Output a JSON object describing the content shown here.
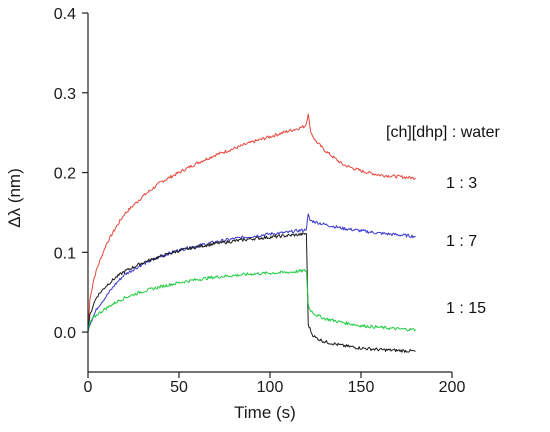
{
  "chart_data": {
    "type": "line",
    "xlabel": "Time (s)",
    "ylabel": "Δλ (nm)",
    "xlim": [
      0,
      200
    ],
    "ylim": [
      -0.05,
      0.4
    ],
    "x_ticks": [
      0,
      50,
      100,
      150,
      200
    ],
    "y_ticks": [
      0.0,
      0.1,
      0.2,
      0.3,
      0.4
    ],
    "x_tick_labels": [
      "0",
      "50",
      "100",
      "150",
      "200"
    ],
    "y_tick_labels": [
      "0.0",
      "0.1",
      "0.2",
      "0.3",
      "0.4"
    ],
    "grid": false,
    "legend_title": "[ch][dhp] : water",
    "series": [
      {
        "name": "1 : 3",
        "color": "#e8463c",
        "x": [
          0,
          1,
          3,
          5,
          10,
          15,
          20,
          30,
          40,
          50,
          60,
          70,
          80,
          90,
          100,
          110,
          115,
          119,
          120,
          121,
          122,
          123,
          125,
          130,
          140,
          150,
          160,
          170,
          180
        ],
        "y": [
          0.0,
          0.04,
          0.065,
          0.08,
          0.11,
          0.13,
          0.148,
          0.17,
          0.188,
          0.2,
          0.212,
          0.222,
          0.23,
          0.238,
          0.245,
          0.252,
          0.255,
          0.258,
          0.262,
          0.275,
          0.255,
          0.248,
          0.24,
          0.228,
          0.21,
          0.202,
          0.197,
          0.195,
          0.193
        ]
      },
      {
        "name": "1 : 7",
        "color": "#3a3ad0",
        "x": [
          0,
          1,
          3,
          5,
          10,
          15,
          20,
          30,
          40,
          50,
          60,
          70,
          80,
          90,
          100,
          110,
          115,
          119,
          120,
          121,
          122,
          125,
          130,
          140,
          150,
          160,
          170,
          180
        ],
        "y": [
          0.0,
          0.01,
          0.02,
          0.03,
          0.045,
          0.06,
          0.072,
          0.085,
          0.095,
          0.103,
          0.108,
          0.113,
          0.117,
          0.12,
          0.123,
          0.125,
          0.127,
          0.128,
          0.13,
          0.147,
          0.14,
          0.138,
          0.135,
          0.13,
          0.127,
          0.124,
          0.122,
          0.12
        ]
      },
      {
        "name": "",
        "color": "#1a1a1a",
        "x": [
          0,
          1,
          3,
          5,
          10,
          15,
          20,
          30,
          40,
          50,
          60,
          70,
          80,
          90,
          100,
          110,
          115,
          119,
          120,
          121,
          123,
          125,
          130,
          140,
          150,
          160,
          170,
          180
        ],
        "y": [
          0.0,
          0.02,
          0.035,
          0.045,
          0.058,
          0.068,
          0.076,
          0.087,
          0.095,
          0.102,
          0.107,
          0.111,
          0.114,
          0.117,
          0.119,
          0.121,
          0.122,
          0.123,
          0.124,
          0.01,
          -0.002,
          -0.007,
          -0.012,
          -0.017,
          -0.02,
          -0.022,
          -0.023,
          -0.024
        ]
      },
      {
        "name": "1 : 15",
        "color": "#22cc44",
        "x": [
          0,
          1,
          3,
          5,
          10,
          15,
          20,
          30,
          40,
          50,
          60,
          70,
          80,
          90,
          100,
          110,
          115,
          119,
          120,
          121,
          122,
          125,
          130,
          140,
          150,
          160,
          170,
          180
        ],
        "y": [
          0.0,
          0.012,
          0.018,
          0.022,
          0.03,
          0.037,
          0.043,
          0.051,
          0.057,
          0.062,
          0.066,
          0.069,
          0.071,
          0.073,
          0.074,
          0.075,
          0.076,
          0.077,
          0.077,
          0.035,
          0.028,
          0.022,
          0.017,
          0.012,
          0.008,
          0.006,
          0.004,
          0.003
        ]
      }
    ]
  }
}
